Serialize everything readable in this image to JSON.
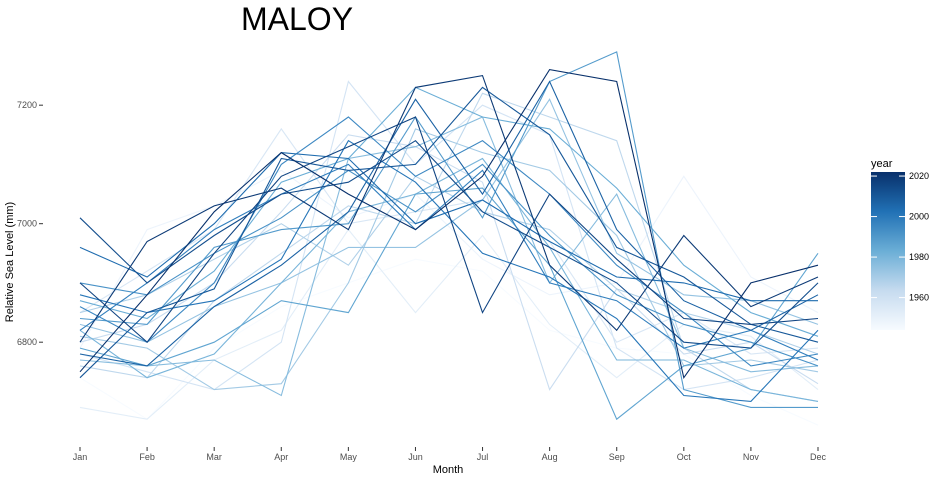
{
  "chart_data": {
    "type": "line",
    "title": "MALOY",
    "xlabel": "Month",
    "ylabel": "Relative Sea Level (mm)",
    "categories": [
      "Jan",
      "Feb",
      "Mar",
      "Apr",
      "May",
      "Jun",
      "Jul",
      "Aug",
      "Sep",
      "Oct",
      "Nov",
      "Dec"
    ],
    "ylim": [
      6640,
      7310
    ],
    "yticks": [
      6800,
      7000,
      7200
    ],
    "grid": false,
    "legend": {
      "title": "year",
      "placement": "right",
      "type": "colorbar",
      "range": [
        1944,
        2022
      ],
      "ticks": [
        1960,
        1980,
        2000,
        2020
      ],
      "color_low": "#f7fbff",
      "color_high": "#08306b"
    },
    "series": [
      {
        "year": 1944,
        "values": [
          6740,
          6670,
          6790,
          6860,
          6900,
          6940,
          6920,
          6820,
          6790,
          6780,
          6710,
          6660
        ]
      },
      {
        "year": 1948,
        "values": [
          6790,
          6990,
          7030,
          7090,
          7010,
          7050,
          6940,
          6880,
          6900,
          7080,
          6910,
          6850
        ]
      },
      {
        "year": 1952,
        "values": [
          6690,
          6670,
          6770,
          6820,
          6990,
          6850,
          6980,
          6830,
          6740,
          6830,
          6810,
          6720
        ]
      },
      {
        "year": 1956,
        "values": [
          6850,
          6920,
          6990,
          7160,
          7000,
          7020,
          7040,
          6970,
          6800,
          6850,
          6780,
          6790
        ]
      },
      {
        "year": 1958,
        "values": [
          6780,
          6750,
          6720,
          6800,
          7240,
          7100,
          7200,
          7150,
          6790,
          6720,
          6740,
          6770
        ]
      },
      {
        "year": 1962,
        "values": [
          6800,
          6830,
          6900,
          7020,
          7150,
          7130,
          7070,
          6720,
          6890,
          6780,
          6800,
          6730
        ]
      },
      {
        "year": 1965,
        "values": [
          6760,
          6740,
          6870,
          6950,
          7030,
          7000,
          7220,
          7180,
          7140,
          6790,
          6720,
          6700
        ]
      },
      {
        "year": 1968,
        "values": [
          6850,
          6880,
          6940,
          7000,
          6930,
          7080,
          7020,
          6990,
          6890,
          6850,
          6820,
          6780
        ]
      },
      {
        "year": 1971,
        "values": [
          6810,
          6790,
          6720,
          6730,
          6900,
          7160,
          7120,
          7090,
          6980,
          6760,
          6770,
          6750
        ]
      },
      {
        "year": 1974,
        "values": [
          6830,
          6800,
          6860,
          6900,
          6960,
          6960,
          7040,
          7210,
          6950,
          6880,
          6870,
          6830
        ]
      },
      {
        "year": 1977,
        "values": [
          6770,
          6760,
          6770,
          6710,
          7110,
          7130,
          7180,
          6900,
          7050,
          6790,
          6750,
          6760
        ]
      },
      {
        "year": 1980,
        "values": [
          6820,
          6740,
          6780,
          6900,
          7020,
          7050,
          7110,
          6960,
          6770,
          6770,
          6720,
          6700
        ]
      },
      {
        "year": 1983,
        "values": [
          6870,
          6840,
          6920,
          7070,
          7110,
          7230,
          7180,
          7160,
          7060,
          6930,
          6850,
          6810
        ]
      },
      {
        "year": 1986,
        "values": [
          6790,
          6760,
          6800,
          6870,
          6850,
          7050,
          7060,
          6930,
          6670,
          6760,
          6790,
          6950
        ]
      },
      {
        "year": 1989,
        "values": [
          6840,
          6830,
          6960,
          6990,
          7000,
          7180,
          7010,
          7240,
          7290,
          6720,
          6690,
          6690
        ]
      },
      {
        "year": 1992,
        "values": [
          6900,
          6880,
          6950,
          7010,
          7090,
          7020,
          7100,
          6980,
          6880,
          6830,
          6800,
          6760
        ]
      },
      {
        "year": 1995,
        "values": [
          6860,
          6800,
          6900,
          7100,
          7180,
          7080,
          7140,
          7050,
          6930,
          6850,
          6760,
          6780
        ]
      },
      {
        "year": 1998,
        "values": [
          6820,
          6900,
          6990,
          7050,
          7100,
          6990,
          7090,
          6900,
          6870,
          6790,
          6820,
          6770
        ]
      },
      {
        "year": 2001,
        "values": [
          6880,
          6850,
          6870,
          6940,
          7140,
          7070,
          6950,
          6910,
          6840,
          6710,
          6700,
          6820
        ]
      },
      {
        "year": 2004,
        "values": [
          6960,
          6910,
          7000,
          7120,
          7110,
          7000,
          7040,
          6970,
          6910,
          6900,
          6870,
          6870
        ]
      },
      {
        "year": 2007,
        "values": [
          6780,
          6760,
          6860,
          6930,
          7020,
          7210,
          7050,
          7240,
          6990,
          6870,
          6820,
          6880
        ]
      },
      {
        "year": 2010,
        "values": [
          6740,
          6850,
          6890,
          7110,
          7090,
          7100,
          7230,
          7150,
          6960,
          6910,
          6830,
          6800
        ]
      },
      {
        "year": 2013,
        "values": [
          7010,
          6900,
          6980,
          7050,
          7070,
          7140,
          7020,
          6960,
          6900,
          6800,
          6790,
          6900
        ]
      },
      {
        "year": 2016,
        "values": [
          6900,
          6800,
          6950,
          7080,
          7130,
          7180,
          6850,
          7050,
          6940,
          6840,
          6830,
          6840
        ]
      },
      {
        "year": 2019,
        "values": [
          6800,
          6970,
          7030,
          7060,
          6990,
          7230,
          7250,
          6930,
          6820,
          6980,
          6860,
          6910
        ]
      },
      {
        "year": 2022,
        "values": [
          6750,
          6880,
          7020,
          7120,
          7050,
          6990,
          7080,
          7260,
          7240,
          6740,
          6900,
          6930
        ]
      }
    ]
  }
}
